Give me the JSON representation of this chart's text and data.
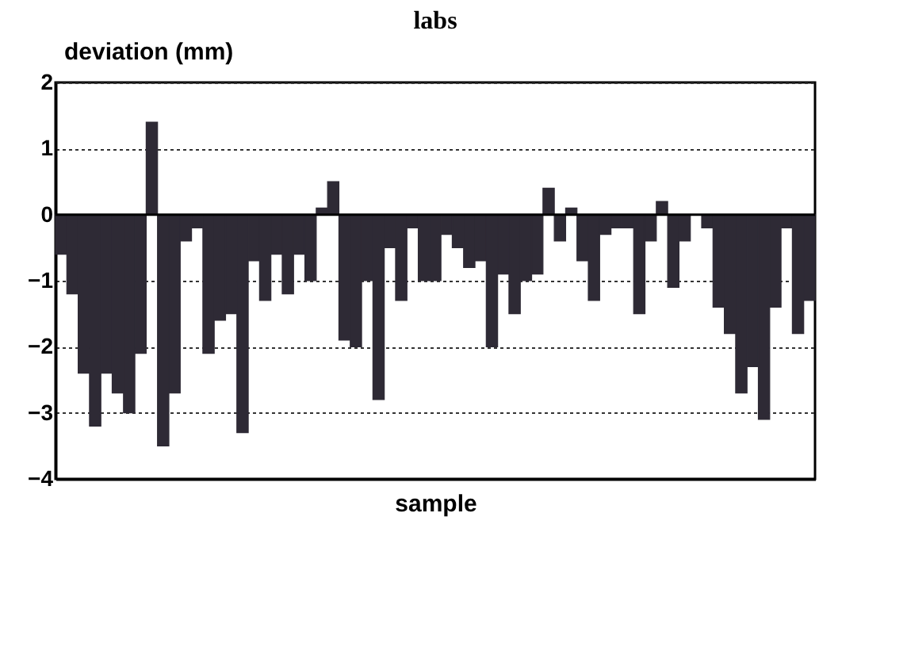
{
  "chart_data": {
    "type": "bar",
    "title": "labs",
    "xlabel": "sample",
    "ylabel": "deviation (mm)",
    "categories": [
      null,
      null,
      null,
      null,
      null,
      null,
      null,
      null,
      null,
      null,
      null,
      null,
      null,
      null,
      null,
      null,
      null,
      null,
      null,
      null,
      null,
      null,
      null,
      null,
      null,
      null,
      null,
      null,
      null,
      null,
      null,
      null,
      null,
      null,
      null,
      null,
      null,
      null,
      null,
      null,
      null,
      null,
      null,
      null,
      null,
      null,
      null,
      null,
      null,
      null,
      null,
      null,
      null,
      null,
      null,
      null,
      null,
      null,
      null,
      null,
      null,
      null,
      null,
      null,
      null,
      null,
      null
    ],
    "values": [
      -0.6,
      -1.2,
      -2.4,
      -3.2,
      -2.4,
      -2.7,
      -3.0,
      -2.1,
      1.4,
      -3.5,
      -2.7,
      -0.4,
      -0.2,
      -2.1,
      -1.6,
      -1.5,
      -3.3,
      -0.7,
      -1.3,
      -0.6,
      -1.2,
      -0.6,
      -1.0,
      0.1,
      0.5,
      -1.9,
      -2.0,
      -1.0,
      -2.8,
      -0.5,
      -1.3,
      -0.2,
      -1.0,
      -1.0,
      -0.3,
      -0.5,
      -0.8,
      -0.7,
      -2.0,
      -0.9,
      -1.5,
      -1.0,
      -0.9,
      0.4,
      -0.4,
      0.1,
      -0.7,
      -1.3,
      -0.3,
      -0.2,
      -0.2,
      -1.5,
      -0.4,
      0.2,
      -1.1,
      -0.4,
      0.0,
      -0.2,
      -1.4,
      -1.8,
      -2.7,
      -2.3,
      -3.1,
      -1.4,
      -0.2,
      -1.8,
      -1.3
    ],
    "color": "#2e2a35",
    "ylim": [
      -4,
      2
    ],
    "yticks": [
      -4,
      -3,
      -2,
      -1,
      0,
      1,
      2
    ],
    "grid": "y"
  }
}
